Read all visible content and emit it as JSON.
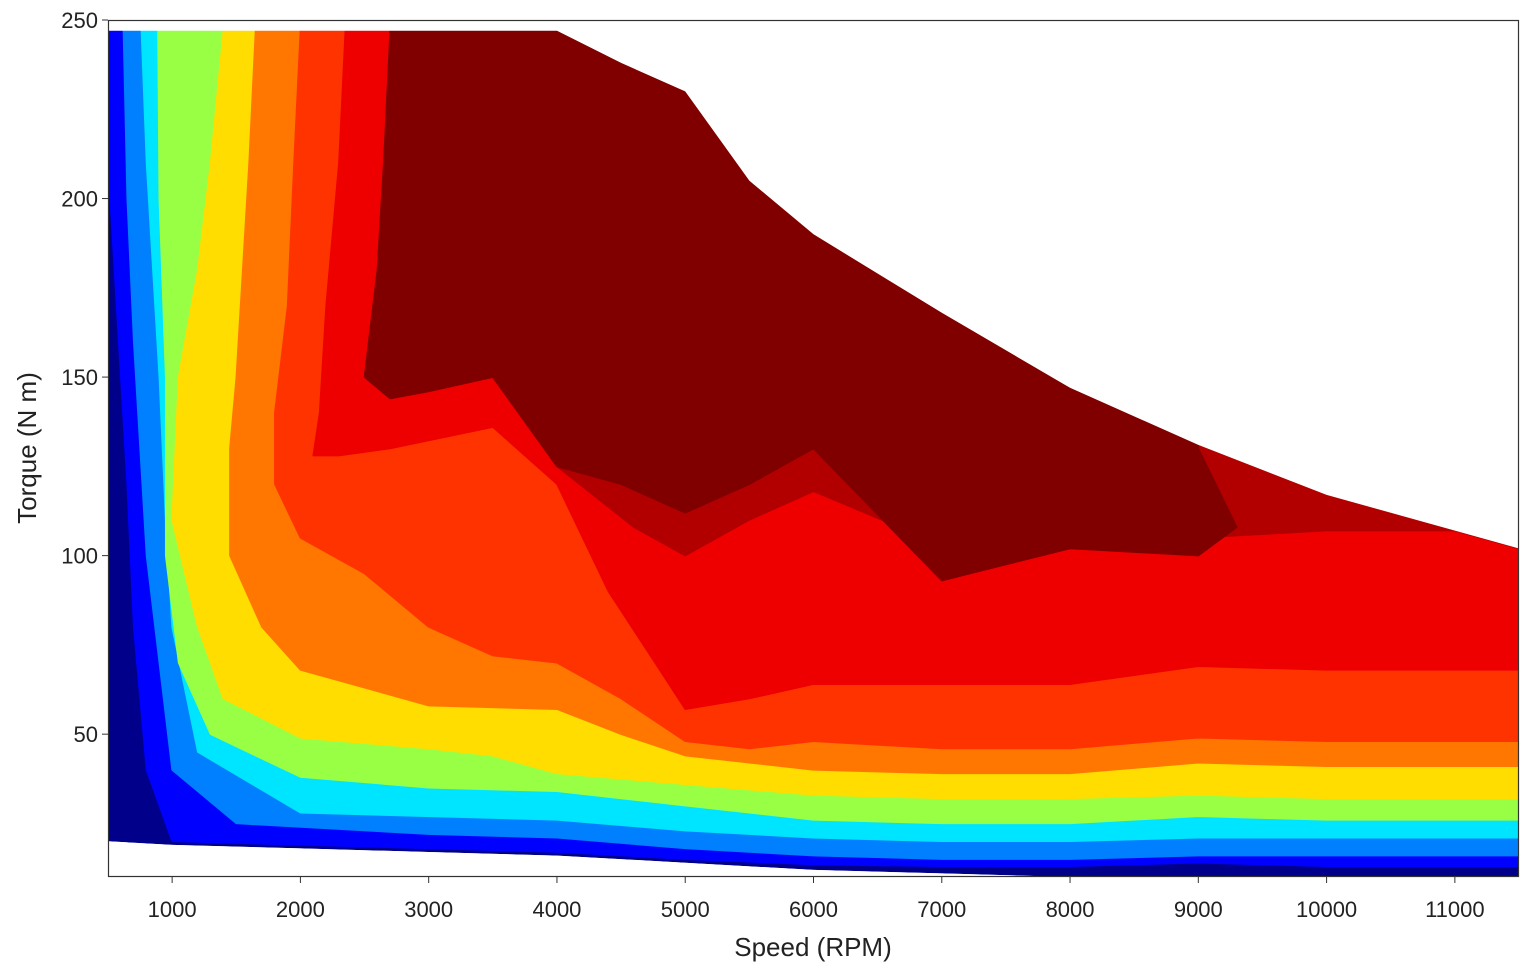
{
  "chart_data": {
    "type": "heatmap",
    "subtype": "filled-contour",
    "title": "",
    "xlabel": "Speed (RPM)",
    "ylabel": "Torque (N m)",
    "xlim": [
      500,
      11500
    ],
    "ylim": [
      10,
      250
    ],
    "xticks": [
      1000,
      2000,
      3000,
      4000,
      5000,
      6000,
      7000,
      8000,
      9000,
      10000,
      11000
    ],
    "yticks": [
      50,
      100,
      150,
      200,
      250
    ],
    "grid": false,
    "legend": "none",
    "colormap": [
      "#00008b",
      "#0000ff",
      "#0080ff",
      "#00e5ff",
      "#99ff44",
      "#ffdd00",
      "#ff7700",
      "#ff3300",
      "#ee0000",
      "#b20000",
      "#800000"
    ],
    "max_torque_envelope": [
      [
        500,
        247
      ],
      [
        4000,
        247
      ],
      [
        4500,
        238
      ],
      [
        5000,
        230
      ],
      [
        5500,
        205
      ],
      [
        6000,
        190
      ],
      [
        7000,
        168
      ],
      [
        8000,
        147
      ],
      [
        9000,
        131
      ],
      [
        10000,
        117
      ],
      [
        11000,
        107
      ],
      [
        11500,
        102
      ]
    ],
    "min_torque_boundary": [
      [
        500,
        20
      ],
      [
        1000,
        19
      ],
      [
        2000,
        18
      ],
      [
        3000,
        17
      ],
      [
        4000,
        16
      ],
      [
        5000,
        14
      ],
      [
        6000,
        12
      ],
      [
        7000,
        11
      ],
      [
        8000,
        10
      ],
      [
        11500,
        10
      ]
    ],
    "contour_levels": [
      {
        "level": 1,
        "color": "#0000ff",
        "boundary": [
          [
            500,
            210
          ],
          [
            550,
            180
          ],
          [
            600,
            150
          ],
          [
            650,
            120
          ],
          [
            700,
            80
          ],
          [
            800,
            40
          ],
          [
            1000,
            20
          ],
          [
            4000,
            17
          ],
          [
            5000,
            15
          ],
          [
            6000,
            13.5
          ],
          [
            7000,
            13
          ],
          [
            8000,
            13
          ],
          [
            9000,
            14
          ],
          [
            10000,
            13
          ],
          [
            11500,
            13
          ]
        ]
      },
      {
        "level": 2,
        "color": "#0080ff",
        "boundary": [
          [
            620,
            247
          ],
          [
            650,
            200
          ],
          [
            700,
            160
          ],
          [
            800,
            100
          ],
          [
            1000,
            40
          ],
          [
            1500,
            25
          ],
          [
            3000,
            22
          ],
          [
            4000,
            21
          ],
          [
            5000,
            18
          ],
          [
            6000,
            16
          ],
          [
            7000,
            15
          ],
          [
            8000,
            15
          ],
          [
            9000,
            16
          ],
          [
            10000,
            16
          ],
          [
            11500,
            16
          ]
        ]
      },
      {
        "level": 3,
        "color": "#00e5ff",
        "boundary": [
          [
            760,
            247
          ],
          [
            800,
            210
          ],
          [
            900,
            150
          ],
          [
            950,
            110
          ],
          [
            1000,
            80
          ],
          [
            1200,
            45
          ],
          [
            2000,
            28
          ],
          [
            4000,
            26
          ],
          [
            5000,
            23
          ],
          [
            6000,
            21
          ],
          [
            7000,
            20
          ],
          [
            8000,
            20
          ],
          [
            9000,
            21
          ],
          [
            10000,
            21
          ],
          [
            11500,
            21
          ]
        ]
      },
      {
        "level": 4,
        "color": "#99ff44",
        "boundary": [
          [
            890,
            247
          ],
          [
            900,
            200
          ],
          [
            950,
            150
          ],
          [
            950,
            100
          ],
          [
            1050,
            70
          ],
          [
            1300,
            50
          ],
          [
            2000,
            38
          ],
          [
            3000,
            35
          ],
          [
            4000,
            34
          ],
          [
            5000,
            30
          ],
          [
            6000,
            26
          ],
          [
            7000,
            25
          ],
          [
            8000,
            25
          ],
          [
            9000,
            27
          ],
          [
            10000,
            26
          ],
          [
            11500,
            26
          ]
        ]
      },
      {
        "level": 5,
        "color": "#ffdd00",
        "boundary": [
          [
            1400,
            247
          ],
          [
            1300,
            210
          ],
          [
            1200,
            180
          ],
          [
            1050,
            150
          ],
          [
            1000,
            110
          ],
          [
            1200,
            80
          ],
          [
            1400,
            60
          ],
          [
            2000,
            49
          ],
          [
            3000,
            46
          ],
          [
            3500,
            44
          ],
          [
            4000,
            39
          ],
          [
            5000,
            36
          ],
          [
            6000,
            33
          ],
          [
            7000,
            32
          ],
          [
            8000,
            32
          ],
          [
            9000,
            33
          ],
          [
            10000,
            32
          ],
          [
            11500,
            32
          ]
        ]
      },
      {
        "level": 6,
        "color": "#ff7700",
        "boundary": [
          [
            1650,
            247
          ],
          [
            1600,
            210
          ],
          [
            1550,
            180
          ],
          [
            1500,
            150
          ],
          [
            1450,
            130
          ],
          [
            1450,
            100
          ],
          [
            1700,
            80
          ],
          [
            2000,
            68
          ],
          [
            3000,
            58
          ],
          [
            4000,
            57
          ],
          [
            4500,
            50
          ],
          [
            5000,
            44
          ],
          [
            5500,
            42
          ],
          [
            6000,
            40
          ],
          [
            7000,
            39
          ],
          [
            8000,
            39
          ],
          [
            9000,
            42
          ],
          [
            10000,
            41
          ],
          [
            11500,
            41
          ]
        ]
      },
      {
        "level": 7,
        "color": "#ff3300",
        "boundary": [
          [
            2000,
            247
          ],
          [
            1950,
            210
          ],
          [
            1900,
            170
          ],
          [
            1800,
            140
          ],
          [
            1800,
            120
          ],
          [
            2000,
            105
          ],
          [
            2500,
            95
          ],
          [
            3000,
            80
          ],
          [
            3500,
            72
          ],
          [
            4000,
            70
          ],
          [
            4500,
            60
          ],
          [
            5000,
            48
          ],
          [
            5500,
            46
          ],
          [
            6000,
            48
          ],
          [
            7000,
            46
          ],
          [
            8000,
            46
          ],
          [
            9000,
            49
          ],
          [
            10000,
            48
          ],
          [
            11500,
            48
          ]
        ]
      },
      {
        "level": 8,
        "color": "#ee0000",
        "boundary": [
          [
            2350,
            247
          ],
          [
            2300,
            210
          ],
          [
            2200,
            170
          ],
          [
            2150,
            140
          ],
          [
            2100,
            128
          ],
          [
            2300,
            128
          ],
          [
            2700,
            130
          ],
          [
            3500,
            136
          ],
          [
            4000,
            120
          ],
          [
            4400,
            90
          ],
          [
            4800,
            68
          ],
          [
            5000,
            57
          ],
          [
            5500,
            60
          ],
          [
            6000,
            64
          ],
          [
            7000,
            64
          ],
          [
            8000,
            64
          ],
          [
            9000,
            69
          ],
          [
            10000,
            68
          ],
          [
            11500,
            68
          ]
        ]
      },
      {
        "level": 9,
        "color": "#b20000",
        "boundary": [
          [
            2700,
            247
          ],
          [
            2650,
            210
          ],
          [
            2600,
            180
          ],
          [
            2500,
            150
          ],
          [
            2700,
            144
          ],
          [
            3000,
            146
          ],
          [
            3500,
            150
          ],
          [
            4000,
            125
          ],
          [
            4600,
            108
          ],
          [
            5000,
            100
          ],
          [
            5500,
            110
          ],
          [
            6000,
            118
          ],
          [
            7000,
            103
          ],
          [
            8000,
            102
          ],
          [
            9000,
            105
          ],
          [
            10000,
            107
          ],
          [
            11500,
            107
          ]
        ]
      },
      {
        "level": 10,
        "color": "#800000",
        "boundary": [
          [
            2700,
            247
          ],
          [
            2650,
            210
          ],
          [
            2600,
            180
          ],
          [
            2500,
            150
          ],
          [
            2700,
            144
          ],
          [
            3000,
            146
          ],
          [
            3500,
            150
          ],
          [
            4000,
            125
          ],
          [
            4500,
            120
          ],
          [
            5000,
            112
          ],
          [
            5500,
            120
          ],
          [
            6000,
            130
          ],
          [
            7000,
            93
          ],
          [
            8000,
            102
          ],
          [
            9000,
            100
          ],
          [
            9300,
            108
          ],
          [
            9000,
            130
          ]
        ]
      }
    ]
  }
}
